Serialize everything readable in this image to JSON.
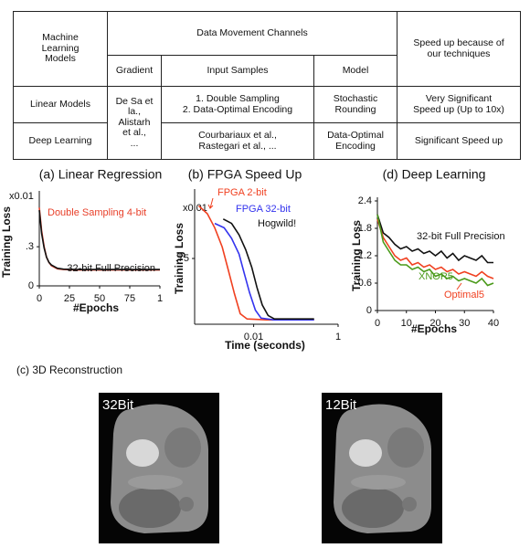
{
  "table": {
    "header_row1": [
      "Machine\nLearning\nModels",
      "Data Movement Channels",
      "Speed up because of\nour techniques"
    ],
    "header_row2": [
      "Gradient",
      "Input Samples",
      "Model"
    ],
    "rows": [
      [
        "Linear Models",
        "De Sa et\nla.,\nAlistarh\net al.,\n...",
        "1. Double Sampling\n2. Data-Optimal Encoding",
        "Stochastic\nRounding",
        "Very Significant\nSpeed up (Up to 10x)"
      ],
      [
        "Deep Learning",
        "Courbariaux et al.,\nRastegari et al., ...",
        "Data-Optimal\nEncoding",
        "Significant Speed up"
      ]
    ]
  },
  "chart_data": [
    {
      "type": "line",
      "title": "(a) Linear Regression",
      "x_label": "#Epochs",
      "y_label": "Training Loss",
      "annotations": [
        {
          "text": "x0.01"
        }
      ],
      "xlim": [
        0,
        100
      ],
      "ylim": [
        0,
        0.7
      ],
      "xticks": [
        0,
        25,
        50,
        75,
        {
          "value": 100,
          "label": "1"
        }
      ],
      "yticks": [
        0,
        {
          "value": 0.3,
          "label": ".3"
        }
      ],
      "series": [
        {
          "name": "Double Sampling 4-bit",
          "color": "#e8402a",
          "x": [
            0,
            2,
            4,
            6,
            8,
            10,
            15,
            20,
            30,
            40,
            50,
            60,
            70,
            80,
            90,
            100
          ],
          "values": [
            0.6,
            0.42,
            0.3,
            0.22,
            0.18,
            0.155,
            0.13,
            0.125,
            0.122,
            0.122,
            0.122,
            0.122,
            0.122,
            0.122,
            0.122,
            0.122
          ]
        },
        {
          "name": "32-bit Full Precision",
          "color": "#111111",
          "x": [
            0,
            2,
            4,
            6,
            8,
            10,
            15,
            20,
            30,
            40,
            50,
            60,
            70,
            80,
            90,
            100
          ],
          "values": [
            0.58,
            0.4,
            0.29,
            0.22,
            0.18,
            0.16,
            0.135,
            0.128,
            0.125,
            0.125,
            0.125,
            0.125,
            0.125,
            0.125,
            0.125,
            0.125
          ]
        }
      ]
    },
    {
      "type": "line",
      "title": "(b) FPGA Speed Up",
      "x_label": "Time (seconds)",
      "y_label": "Training Loss",
      "annotations": [
        {
          "text": "x0.01"
        }
      ],
      "xscale": "log",
      "xlim": [
        0.0004,
        1
      ],
      "ylim": [
        0,
        1.5
      ],
      "xticks": [
        0.01,
        1
      ],
      "yticks": [
        {
          "value": 0.75,
          "label": ".75"
        }
      ],
      "series": [
        {
          "name": "FPGA 2-bit",
          "color": "#f04020",
          "x": [
            0.0005,
            0.0008,
            0.0012,
            0.0018,
            0.0025,
            0.0035,
            0.0048,
            0.007,
            0.02,
            0.1,
            0.27
          ],
          "values": [
            1.35,
            1.26,
            1.1,
            0.88,
            0.62,
            0.35,
            0.12,
            0.06,
            0.05,
            0.05,
            0.05
          ]
        },
        {
          "name": "FPGA 32-bit",
          "color": "#3333ee",
          "x": [
            0.0012,
            0.002,
            0.003,
            0.0045,
            0.006,
            0.008,
            0.011,
            0.015,
            0.03,
            0.1,
            0.27
          ],
          "values": [
            1.15,
            1.1,
            0.98,
            0.8,
            0.58,
            0.36,
            0.16,
            0.07,
            0.05,
            0.05,
            0.05
          ]
        },
        {
          "name": "Hogwild!",
          "color": "#111111",
          "x": [
            0.0019,
            0.003,
            0.0045,
            0.0065,
            0.009,
            0.012,
            0.016,
            0.022,
            0.031,
            0.1,
            0.27
          ],
          "values": [
            1.2,
            1.15,
            1.02,
            0.85,
            0.65,
            0.42,
            0.22,
            0.1,
            0.06,
            0.06,
            0.06
          ]
        }
      ]
    },
    {
      "type": "line",
      "title": "(d) Deep Learning",
      "x_label": "#Epochs",
      "y_label": "Training Loss",
      "xlim": [
        0,
        40
      ],
      "ylim": [
        0,
        2.4
      ],
      "xticks": [
        0,
        10,
        20,
        30,
        40
      ],
      "yticks": [
        0,
        0.6,
        1.2,
        1.8,
        2.4
      ],
      "series": [
        {
          "name": "32-bit Full Precision",
          "color": "#111111",
          "x": [
            0,
            2,
            4,
            6,
            8,
            10,
            12,
            14,
            16,
            18,
            20,
            22,
            24,
            26,
            28,
            30,
            32,
            34,
            36,
            38,
            40
          ],
          "values": [
            2.1,
            1.7,
            1.6,
            1.45,
            1.35,
            1.4,
            1.3,
            1.35,
            1.25,
            1.3,
            1.2,
            1.3,
            1.15,
            1.25,
            1.1,
            1.2,
            1.15,
            1.1,
            1.2,
            1.05,
            1.05
          ]
        },
        {
          "name": "Optimal5",
          "color": "#f04020",
          "x": [
            0,
            2,
            4,
            6,
            8,
            10,
            12,
            14,
            16,
            18,
            20,
            22,
            24,
            26,
            28,
            30,
            32,
            34,
            36,
            38,
            40
          ],
          "values": [
            2.0,
            1.6,
            1.4,
            1.2,
            1.1,
            1.15,
            1.0,
            1.05,
            0.95,
            1.0,
            0.9,
            0.95,
            0.85,
            0.9,
            0.8,
            0.85,
            0.8,
            0.75,
            0.85,
            0.75,
            0.7
          ]
        },
        {
          "name": "XNOR5",
          "color": "#4a9a1a",
          "x": [
            0,
            2,
            4,
            6,
            8,
            10,
            12,
            14,
            16,
            18,
            20,
            22,
            24,
            26,
            28,
            30,
            32,
            34,
            36,
            38,
            40
          ],
          "values": [
            2.1,
            1.5,
            1.3,
            1.1,
            1.0,
            1.0,
            0.9,
            0.95,
            0.85,
            0.9,
            0.75,
            0.8,
            0.7,
            0.75,
            0.65,
            0.7,
            0.65,
            0.6,
            0.7,
            0.55,
            0.6
          ]
        }
      ]
    }
  ],
  "reconstruction": {
    "title": "(c) 3D Reconstruction",
    "images": [
      {
        "label": "32Bit"
      },
      {
        "label": "12Bit"
      }
    ]
  }
}
